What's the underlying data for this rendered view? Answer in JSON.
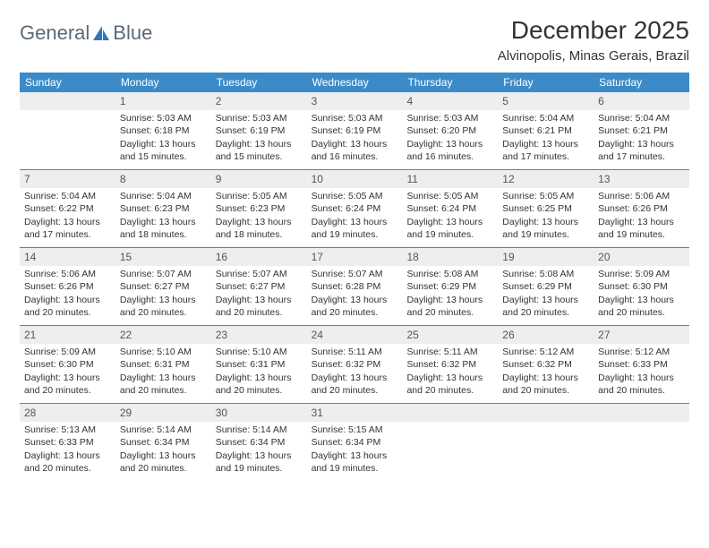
{
  "logo": {
    "text_general": "General",
    "text_blue": "Blue"
  },
  "header": {
    "month_title": "December 2025",
    "location": "Alvinopolis, Minas Gerais, Brazil"
  },
  "weekdays": [
    "Sunday",
    "Monday",
    "Tuesday",
    "Wednesday",
    "Thursday",
    "Friday",
    "Saturday"
  ],
  "colors": {
    "header_bar": "#3b8bc9",
    "day_num_bg": "#eceef0",
    "week_divider": "#3b8bc9",
    "text": "#333333",
    "logo_gray": "#5a6a78",
    "logo_blue": "#2f78b7"
  },
  "weeks": [
    [
      {
        "empty": true
      },
      {
        "num": "1",
        "sunrise": "5:03 AM",
        "sunset": "6:18 PM",
        "daylight": "13 hours and 15 minutes."
      },
      {
        "num": "2",
        "sunrise": "5:03 AM",
        "sunset": "6:19 PM",
        "daylight": "13 hours and 15 minutes."
      },
      {
        "num": "3",
        "sunrise": "5:03 AM",
        "sunset": "6:19 PM",
        "daylight": "13 hours and 16 minutes."
      },
      {
        "num": "4",
        "sunrise": "5:03 AM",
        "sunset": "6:20 PM",
        "daylight": "13 hours and 16 minutes."
      },
      {
        "num": "5",
        "sunrise": "5:04 AM",
        "sunset": "6:21 PM",
        "daylight": "13 hours and 17 minutes."
      },
      {
        "num": "6",
        "sunrise": "5:04 AM",
        "sunset": "6:21 PM",
        "daylight": "13 hours and 17 minutes."
      }
    ],
    [
      {
        "num": "7",
        "sunrise": "5:04 AM",
        "sunset": "6:22 PM",
        "daylight": "13 hours and 17 minutes."
      },
      {
        "num": "8",
        "sunrise": "5:04 AM",
        "sunset": "6:23 PM",
        "daylight": "13 hours and 18 minutes."
      },
      {
        "num": "9",
        "sunrise": "5:05 AM",
        "sunset": "6:23 PM",
        "daylight": "13 hours and 18 minutes."
      },
      {
        "num": "10",
        "sunrise": "5:05 AM",
        "sunset": "6:24 PM",
        "daylight": "13 hours and 19 minutes."
      },
      {
        "num": "11",
        "sunrise": "5:05 AM",
        "sunset": "6:24 PM",
        "daylight": "13 hours and 19 minutes."
      },
      {
        "num": "12",
        "sunrise": "5:05 AM",
        "sunset": "6:25 PM",
        "daylight": "13 hours and 19 minutes."
      },
      {
        "num": "13",
        "sunrise": "5:06 AM",
        "sunset": "6:26 PM",
        "daylight": "13 hours and 19 minutes."
      }
    ],
    [
      {
        "num": "14",
        "sunrise": "5:06 AM",
        "sunset": "6:26 PM",
        "daylight": "13 hours and 20 minutes."
      },
      {
        "num": "15",
        "sunrise": "5:07 AM",
        "sunset": "6:27 PM",
        "daylight": "13 hours and 20 minutes."
      },
      {
        "num": "16",
        "sunrise": "5:07 AM",
        "sunset": "6:27 PM",
        "daylight": "13 hours and 20 minutes."
      },
      {
        "num": "17",
        "sunrise": "5:07 AM",
        "sunset": "6:28 PM",
        "daylight": "13 hours and 20 minutes."
      },
      {
        "num": "18",
        "sunrise": "5:08 AM",
        "sunset": "6:29 PM",
        "daylight": "13 hours and 20 minutes."
      },
      {
        "num": "19",
        "sunrise": "5:08 AM",
        "sunset": "6:29 PM",
        "daylight": "13 hours and 20 minutes."
      },
      {
        "num": "20",
        "sunrise": "5:09 AM",
        "sunset": "6:30 PM",
        "daylight": "13 hours and 20 minutes."
      }
    ],
    [
      {
        "num": "21",
        "sunrise": "5:09 AM",
        "sunset": "6:30 PM",
        "daylight": "13 hours and 20 minutes."
      },
      {
        "num": "22",
        "sunrise": "5:10 AM",
        "sunset": "6:31 PM",
        "daylight": "13 hours and 20 minutes."
      },
      {
        "num": "23",
        "sunrise": "5:10 AM",
        "sunset": "6:31 PM",
        "daylight": "13 hours and 20 minutes."
      },
      {
        "num": "24",
        "sunrise": "5:11 AM",
        "sunset": "6:32 PM",
        "daylight": "13 hours and 20 minutes."
      },
      {
        "num": "25",
        "sunrise": "5:11 AM",
        "sunset": "6:32 PM",
        "daylight": "13 hours and 20 minutes."
      },
      {
        "num": "26",
        "sunrise": "5:12 AM",
        "sunset": "6:32 PM",
        "daylight": "13 hours and 20 minutes."
      },
      {
        "num": "27",
        "sunrise": "5:12 AM",
        "sunset": "6:33 PM",
        "daylight": "13 hours and 20 minutes."
      }
    ],
    [
      {
        "num": "28",
        "sunrise": "5:13 AM",
        "sunset": "6:33 PM",
        "daylight": "13 hours and 20 minutes."
      },
      {
        "num": "29",
        "sunrise": "5:14 AM",
        "sunset": "6:34 PM",
        "daylight": "13 hours and 20 minutes."
      },
      {
        "num": "30",
        "sunrise": "5:14 AM",
        "sunset": "6:34 PM",
        "daylight": "13 hours and 19 minutes."
      },
      {
        "num": "31",
        "sunrise": "5:15 AM",
        "sunset": "6:34 PM",
        "daylight": "13 hours and 19 minutes."
      },
      {
        "empty": true
      },
      {
        "empty": true
      },
      {
        "empty": true
      }
    ]
  ],
  "labels": {
    "sunrise_prefix": "Sunrise: ",
    "sunset_prefix": "Sunset: ",
    "daylight_prefix": "Daylight: "
  }
}
